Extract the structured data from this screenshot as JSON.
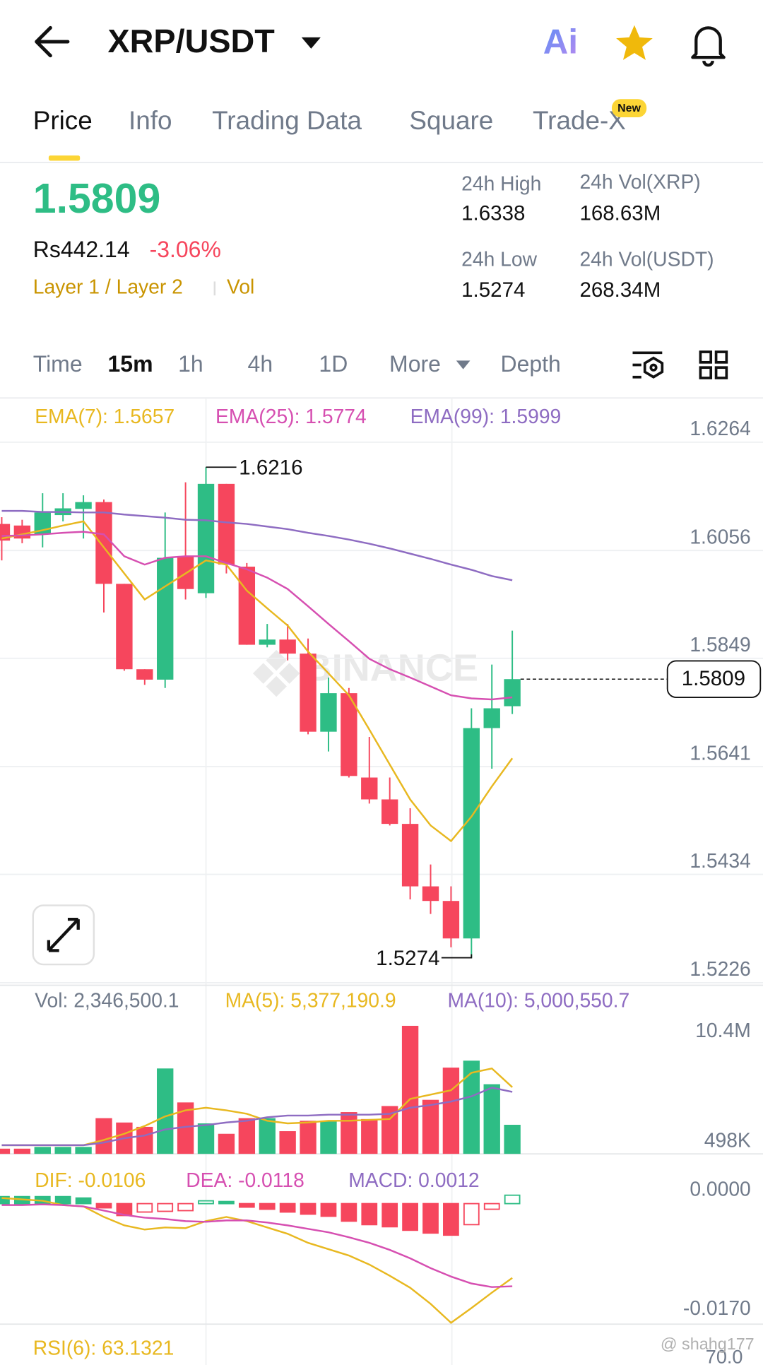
{
  "header": {
    "title": "XRP/USDT",
    "ai": "Ai"
  },
  "tabs": {
    "items": [
      "Price",
      "Info",
      "Trading Data",
      "Square",
      "Trade-X"
    ],
    "badge": "New"
  },
  "ticker": {
    "price": "1.5809",
    "fiat": "Rs442.14",
    "change": "-3.06%",
    "tags": [
      "Layer 1 / Layer 2",
      "Vol"
    ],
    "stats": [
      {
        "label": "24h High",
        "value": "1.6338"
      },
      {
        "label": "24h Vol(XRP)",
        "value": "168.63M"
      },
      {
        "label": "24h Low",
        "value": "1.5274"
      },
      {
        "label": "24h Vol(USDT)",
        "value": "268.34M"
      }
    ]
  },
  "intervals": [
    "Time",
    "15m",
    "1h",
    "4h",
    "1D",
    "More",
    "Depth"
  ],
  "chart_data": [
    {
      "type": "candlestick",
      "up_color": "#2ebd85",
      "down_color": "#f6465d",
      "open": [
        1.6107,
        1.6104,
        1.6087,
        1.6124,
        1.6136,
        1.6149,
        1.5992,
        1.5828,
        1.5808,
        1.6045,
        1.5974,
        1.6184,
        1.6025,
        1.5875,
        1.5885,
        1.5858,
        1.5708,
        1.5782,
        1.562,
        1.5578,
        1.5531,
        1.5411,
        1.5383,
        1.5311,
        1.5715,
        1.5757
      ],
      "high": [
        1.612,
        1.6115,
        1.6166,
        1.6166,
        1.6162,
        1.6154,
        1.5992,
        1.5828,
        1.6129,
        1.6187,
        1.6216,
        1.6184,
        1.6032,
        1.5915,
        1.5915,
        1.5887,
        1.5812,
        1.5792,
        1.5698,
        1.562,
        1.5561,
        1.5453,
        1.5411,
        1.5753,
        1.5837,
        1.5902
      ],
      "low": [
        1.6037,
        1.607,
        1.6062,
        1.6112,
        1.6079,
        1.5937,
        1.5825,
        1.5798,
        1.5792,
        1.5962,
        1.5965,
        1.6012,
        1.5875,
        1.587,
        1.5845,
        1.5703,
        1.567,
        1.562,
        1.557,
        1.5528,
        1.5386,
        1.5358,
        1.5294,
        1.5274,
        1.5637,
        1.5742
      ],
      "close": [
        1.6075,
        1.6079,
        1.6129,
        1.6137,
        1.6149,
        1.5992,
        1.5828,
        1.5808,
        1.6042,
        1.5982,
        1.6184,
        1.6029,
        1.5875,
        1.5885,
        1.5858,
        1.5708,
        1.5782,
        1.5623,
        1.5578,
        1.5531,
        1.5411,
        1.5383,
        1.5311,
        1.5715,
        1.5753,
        1.5809
      ],
      "series": [
        {
          "label": "EMA(7): 1.5657",
          "color": "#e8b820",
          "values": [
            1.6079,
            1.6087,
            1.6095,
            1.6104,
            1.6112,
            1.6062,
            1.6012,
            1.5962,
            1.5987,
            1.6012,
            1.6037,
            1.6029,
            1.5979,
            1.5945,
            1.5912,
            1.5862,
            1.582,
            1.5778,
            1.5712,
            1.5645,
            1.5578,
            1.5528,
            1.5498,
            1.5545,
            1.5603,
            1.5657
          ]
        },
        {
          "label": "EMA(25): 1.5774",
          "color": "#d64fb1",
          "values": [
            1.6084,
            1.6085,
            1.6087,
            1.609,
            1.6092,
            1.6087,
            1.6045,
            1.6029,
            1.6042,
            1.6045,
            1.6045,
            1.6032,
            1.602,
            1.6004,
            1.5982,
            1.5949,
            1.5915,
            1.5882,
            1.5848,
            1.5828,
            1.5812,
            1.5795,
            1.5778,
            1.5772,
            1.577,
            1.5774
          ]
        },
        {
          "label": "EMA(99): 1.5999",
          "color": "#8e6cc2",
          "values": [
            1.6132,
            1.6132,
            1.613,
            1.613,
            1.6129,
            1.6129,
            1.6125,
            1.6122,
            1.6119,
            1.6115,
            1.6114,
            1.611,
            1.6107,
            1.6102,
            1.6097,
            1.609,
            1.6084,
            1.6077,
            1.6069,
            1.606,
            1.605,
            1.604,
            1.6029,
            1.6019,
            1.6007,
            1.5999
          ]
        }
      ],
      "ylim": [
        1.5221,
        1.6349
      ],
      "yticks": [
        1.5226,
        1.5434,
        1.5641,
        1.5849,
        1.6056,
        1.6264
      ],
      "grid": true,
      "last_price": 1.5809,
      "high_label": 1.6216,
      "low_label": 1.5274,
      "watermark": "BINANCE"
    },
    {
      "type": "bar",
      "label": "Vol: 2,346,500.1",
      "values": [
        420000,
        420000,
        560000,
        560000,
        560000,
        2880000,
        2530000,
        2180000,
        6890000,
        4150000,
        2460000,
        1620000,
        2880000,
        2880000,
        1830000,
        2670000,
        2670000,
        3370000,
        2810000,
        3860000,
        10330000,
        4360000,
        6960000,
        7520000,
        5620000,
        2346500.1
      ],
      "series": [
        {
          "label": "MA(5): 5,377,190.9",
          "color": "#e8b820",
          "values": [
            700000,
            700000,
            700000,
            700000,
            700000,
            1120000,
            1620000,
            2250000,
            3020000,
            3510000,
            3720000,
            3510000,
            3230000,
            2670000,
            2460000,
            2530000,
            2670000,
            2670000,
            2740000,
            2810000,
            4430000,
            4780000,
            5130000,
            6540000,
            6890000,
            5377190.9
          ]
        },
        {
          "label": "MA(10): 5,000,550.7",
          "color": "#8e6cc2",
          "values": [
            700000,
            700000,
            700000,
            700000,
            700000,
            910000,
            1260000,
            1480000,
            1970000,
            2180000,
            2320000,
            2530000,
            2670000,
            2950000,
            3090000,
            3090000,
            3160000,
            3160000,
            3160000,
            3230000,
            3720000,
            3940000,
            4220000,
            4640000,
            5340000,
            5000550.7
          ]
        }
      ],
      "ylim": [
        0,
        13600000
      ],
      "yticks": [
        {
          "value": 498000,
          "label": "498K"
        },
        {
          "value": 10400000,
          "label": "10.4M"
        }
      ]
    },
    {
      "type": "macd",
      "label": "MACD: 0.0012",
      "values": [
        0.001,
        0.001,
        0.001,
        0.001,
        0.0008,
        -0.0006,
        -0.0017,
        -0.0012,
        -0.0011,
        -0.001,
        0.0004,
        0.0003,
        -0.0005,
        -0.0008,
        -0.0012,
        -0.0015,
        -0.0018,
        -0.0025,
        -0.003,
        -0.0033,
        -0.0038,
        -0.0042,
        -0.0045,
        -0.003,
        -0.0008,
        0.0012
      ],
      "series": [
        {
          "label": "DIF: -0.0106",
          "color": "#e8b820",
          "values": [
            0.0008,
            0.0006,
            0.0004,
            -0.0002,
            -0.0004,
            -0.0019,
            -0.0031,
            -0.0037,
            -0.0034,
            -0.0035,
            -0.0025,
            -0.0019,
            -0.0025,
            -0.0034,
            -0.0043,
            -0.0056,
            -0.0065,
            -0.0074,
            -0.0087,
            -0.0103,
            -0.012,
            -0.0143,
            -0.017,
            -0.0149,
            -0.0127,
            -0.0106
          ]
        },
        {
          "label": "DEA: -0.0118",
          "color": "#d64fb1",
          "values": [
            -0.0002,
            -0.0002,
            -0.0001,
            -0.0002,
            -0.0004,
            -0.001,
            -0.0016,
            -0.002,
            -0.0022,
            -0.0025,
            -0.0026,
            -0.0024,
            -0.0024,
            -0.0027,
            -0.0031,
            -0.0036,
            -0.0041,
            -0.0048,
            -0.0056,
            -0.0066,
            -0.0078,
            -0.0092,
            -0.0104,
            -0.0114,
            -0.0119,
            -0.0118
          ]
        }
      ],
      "label_color": "#8e6cc2",
      "ylim": [
        -0.0172,
        0.0071
      ],
      "yticks": [
        {
          "value": -0.017,
          "label": "-0.0170"
        },
        {
          "value": 0,
          "label": "0.0000"
        }
      ]
    }
  ],
  "footer": {
    "rsi": "RSI(6): 63.1321",
    "rsi_tick": "70.0",
    "watermark": "@ shahg177"
  }
}
